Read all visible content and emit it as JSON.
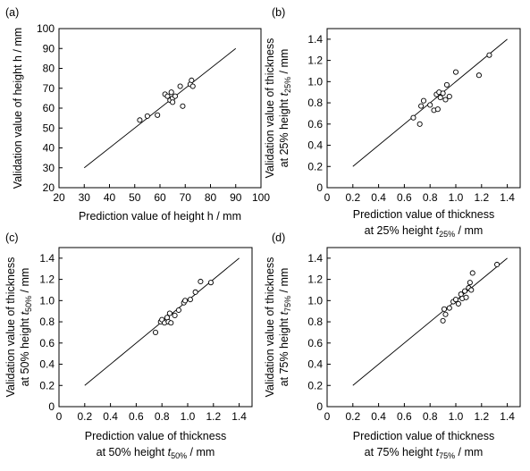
{
  "chart_data": [
    {
      "panel": "(a)",
      "type": "scatter",
      "xlabel": "Prediction value of height h / mm",
      "ylabel": "Validation value of height h / mm",
      "xlim": [
        20,
        100
      ],
      "ylim": [
        20,
        100
      ],
      "xticks": [
        "20",
        "30",
        "40",
        "50",
        "60",
        "70",
        "80",
        "90",
        "100"
      ],
      "yticks": [
        "20",
        "30",
        "40",
        "50",
        "60",
        "70",
        "80",
        "90",
        "100"
      ],
      "line": [
        [
          30,
          30
        ],
        [
          90,
          90
        ]
      ],
      "x": [
        52,
        55,
        59,
        62,
        63,
        64,
        64.5,
        65,
        65,
        66,
        68,
        69,
        72,
        72.5,
        73
      ],
      "y": [
        54,
        56,
        56.5,
        67,
        66,
        64,
        68,
        65,
        63,
        66,
        71,
        61,
        72,
        74,
        71
      ]
    },
    {
      "panel": "(b)",
      "type": "scatter",
      "xlabel_line1": "Prediction value of thickness",
      "xlabel_line2_pre": "at 25% height ",
      "xlabel_line2_sym": "t",
      "xlabel_line2_sub": "25%",
      "xlabel_line2_post": " / mm",
      "ylabel_line1": "Validation value of thickness",
      "ylabel_line2_pre": "at 25% height ",
      "ylabel_line2_sym": "t",
      "ylabel_line2_sub": "25%",
      "ylabel_line2_post": " / mm",
      "xlim": [
        0,
        1.5
      ],
      "ylim": [
        0,
        1.5
      ],
      "xticks": [
        "0",
        "0.2",
        "0.4",
        "0.6",
        "0.8",
        "1.0",
        "1.2",
        "1.4"
      ],
      "yticks": [
        "0",
        "0.2",
        "0.4",
        "0.6",
        "0.8",
        "1.0",
        "1.2",
        "1.4"
      ],
      "line": [
        [
          0.2,
          0.2
        ],
        [
          1.4,
          1.4
        ]
      ],
      "x": [
        0.67,
        0.72,
        0.73,
        0.75,
        0.8,
        0.83,
        0.85,
        0.86,
        0.87,
        0.88,
        0.9,
        0.92,
        0.93,
        0.95,
        1.0,
        1.18,
        1.26
      ],
      "y": [
        0.66,
        0.6,
        0.77,
        0.82,
        0.78,
        0.73,
        0.88,
        0.74,
        0.9,
        0.85,
        0.89,
        0.83,
        0.97,
        0.86,
        1.09,
        1.06,
        1.25
      ]
    },
    {
      "panel": "(c)",
      "type": "scatter",
      "xlabel_line1": "Prediction value of thickness",
      "xlabel_line2_pre": "at 50% height ",
      "xlabel_line2_sym": "t",
      "xlabel_line2_sub": "50%",
      "xlabel_line2_post": " / mm",
      "ylabel_line1": "Validation value of thickness",
      "ylabel_line2_pre": "at 50% height ",
      "ylabel_line2_sym": "t",
      "ylabel_line2_sub": "50%",
      "ylabel_line2_post": " / mm",
      "xlim": [
        0,
        1.5
      ],
      "ylim": [
        0,
        1.5
      ],
      "xticks": [
        "0",
        "0.2",
        "0.4",
        "0.6",
        "0.8",
        "1.0",
        "1.2",
        "1.4"
      ],
      "yticks": [
        "0",
        "0.2",
        "0.4",
        "0.6",
        "0.8",
        "1.0",
        "1.2",
        "1.4"
      ],
      "line": [
        [
          0.2,
          0.2
        ],
        [
          1.4,
          1.4
        ]
      ],
      "x": [
        0.75,
        0.79,
        0.8,
        0.82,
        0.84,
        0.85,
        0.86,
        0.87,
        0.9,
        0.93,
        0.97,
        0.98,
        1.02,
        1.06,
        1.1,
        1.18
      ],
      "y": [
        0.7,
        0.8,
        0.82,
        0.79,
        0.84,
        0.8,
        0.88,
        0.79,
        0.86,
        0.91,
        0.98,
        1.0,
        1.01,
        1.08,
        1.18,
        1.17
      ]
    },
    {
      "panel": "(d)",
      "type": "scatter",
      "xlabel_line1": "Prediction value of thickness",
      "xlabel_line2_pre": "at 75% height ",
      "xlabel_line2_sym": "t",
      "xlabel_line2_sub": "75%",
      "xlabel_line2_post": " / mm",
      "ylabel_line1": "Validation value of thickness",
      "ylabel_line2_pre": "at 75% height ",
      "ylabel_line2_sym": "t",
      "ylabel_line2_sub": "75%",
      "ylabel_line2_post": " / mm",
      "xlim": [
        0,
        1.5
      ],
      "ylim": [
        0,
        1.5
      ],
      "xticks": [
        "0",
        "0.2",
        "0.4",
        "0.6",
        "0.8",
        "1.0",
        "1.2",
        "1.4"
      ],
      "yticks": [
        "0",
        "0.2",
        "0.4",
        "0.6",
        "0.8",
        "1.0",
        "1.2",
        "1.4"
      ],
      "line": [
        [
          0.2,
          0.2
        ],
        [
          1.4,
          1.4
        ]
      ],
      "x": [
        0.9,
        0.91,
        0.92,
        0.95,
        0.98,
        1.0,
        1.02,
        1.04,
        1.05,
        1.07,
        1.08,
        1.1,
        1.11,
        1.12,
        1.13,
        1.32
      ],
      "y": [
        0.81,
        0.92,
        0.87,
        0.93,
        0.99,
        1.01,
        0.97,
        1.06,
        1.02,
        1.09,
        1.03,
        1.12,
        1.17,
        1.1,
        1.26,
        1.34
      ]
    }
  ]
}
